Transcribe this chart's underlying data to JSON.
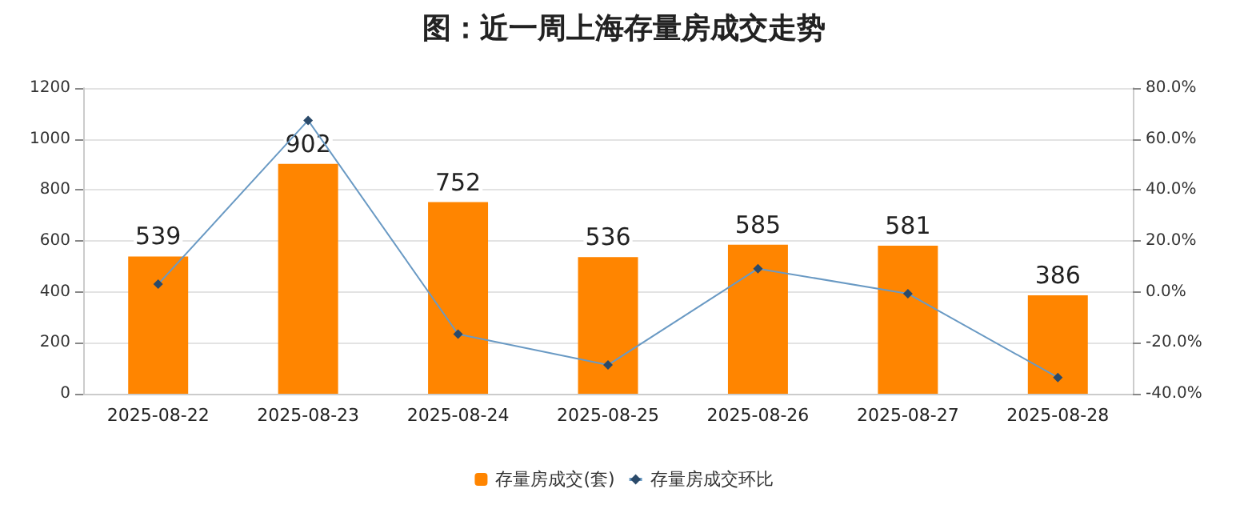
{
  "chart_data": {
    "type": "bar",
    "title": "图：近一周上海存量房成交走势",
    "categories": [
      "2025-08-22",
      "2025-08-23",
      "2025-08-24",
      "2025-08-25",
      "2025-08-26",
      "2025-08-27",
      "2025-08-28"
    ],
    "series": [
      {
        "name": "存量房成交(套)",
        "color": "#ff8500",
        "values": [
          539,
          902,
          752,
          536,
          585,
          581,
          386
        ],
        "data_labels": true
      },
      {
        "name": "存量房成交环比",
        "type": "line",
        "axis": "y2",
        "color": "#6a9ac4",
        "marker": "diamond",
        "values": [
          3.0,
          67.3,
          -16.6,
          -28.7,
          9.1,
          -0.7,
          -33.6
        ]
      }
    ],
    "ylim": [
      0,
      1200
    ],
    "yticks": [
      0,
      200,
      400,
      600,
      800,
      1000,
      1200
    ],
    "y2lim": [
      -40,
      80
    ],
    "y2ticks": [
      {
        "value": -40,
        "label": "-40.0%"
      },
      {
        "value": -20,
        "label": "-20.0%"
      },
      {
        "value": 0,
        "label": "0.0%"
      },
      {
        "value": 20,
        "label": "20.0%"
      },
      {
        "value": 40,
        "label": "40.0%"
      },
      {
        "value": 60,
        "label": "60.0%"
      },
      {
        "value": 80,
        "label": "80.0%"
      }
    ],
    "grid": "y",
    "legend": "bottom"
  }
}
